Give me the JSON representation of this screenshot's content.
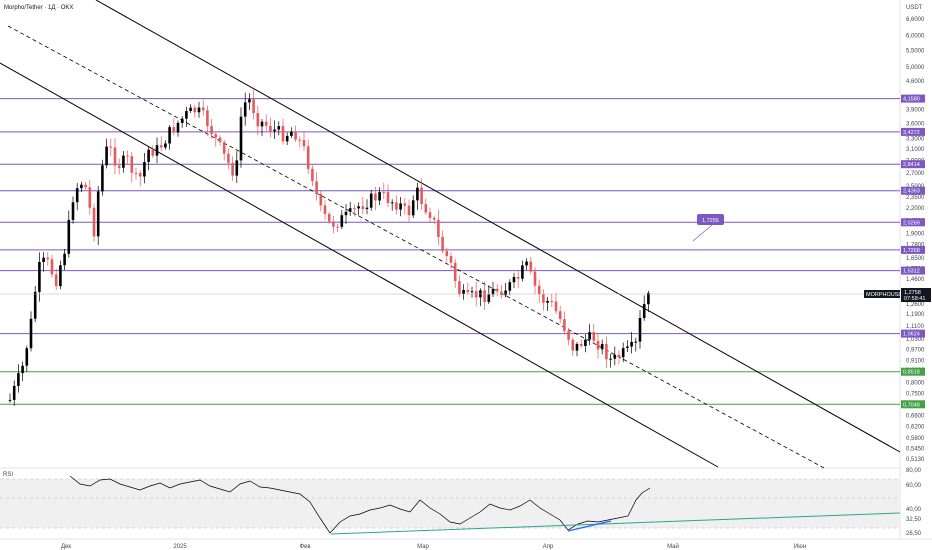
{
  "header": {
    "symbol_title": "Morpho/Tether · 1Д · OKX",
    "currency": "USDT"
  },
  "price_axis": {
    "ticks": [
      "6,6000",
      "6,0000",
      "5,5000",
      "5,0000",
      "4,6000",
      "4,2000",
      "3,9000",
      "3,6000",
      "3,3000",
      "3,1000",
      "2,9000",
      "2,7000",
      "2,5000",
      "2,3500",
      "2,2000",
      "2,0500",
      "1,9000",
      "1,7800",
      "1,6500",
      "1,5500",
      "1,4600",
      "1,3500",
      "1,2600",
      "1,1900",
      "1,1100",
      "1,0300",
      "0,9700",
      "0,9100",
      "0,8600",
      "0,8000",
      "0,7500",
      "0,7000",
      "0,6600",
      "0,6200",
      "0,5800",
      "0,5450",
      "0,5130"
    ]
  },
  "levels": [
    {
      "label": "4,1580",
      "color": "#7e57c2"
    },
    {
      "label": "3,4272",
      "color": "#7e57c2"
    },
    {
      "label": "2,8414",
      "color": "#7e57c2"
    },
    {
      "label": "2,4363",
      "color": "#7e57c2"
    },
    {
      "label": "2,0269",
      "color": "#7e57c2"
    },
    {
      "label": "1,7268",
      "color": "#7e57c2"
    },
    {
      "label": "1,5312",
      "color": "#7e57c2"
    },
    {
      "label": "1,0624",
      "color": "#7e57c2"
    },
    {
      "label": "0,8518",
      "color": "#43a047"
    },
    {
      "label": "0,7048",
      "color": "#43a047"
    }
  ],
  "current_price": {
    "symbol": "MORPHOUSDT",
    "price": "1,2758",
    "countdown": "07:58:41"
  },
  "callout": {
    "label": "1,7255"
  },
  "time_axis": [
    "Дек",
    "2025",
    "Фев",
    "Мар",
    "Апр",
    "Май",
    "Июн"
  ],
  "rsi": {
    "title": "RSI",
    "ticks": [
      "80,00",
      "60,00",
      "40,00",
      "32,50",
      "26,50"
    ]
  },
  "colors": {
    "up": "#000000",
    "down": "#e35a5a",
    "level_purple": "#7e57c2",
    "level_green": "#43a047",
    "trend_line": "#000000",
    "rsi_line": "#000000",
    "rsi_trend_teal": "#26a69a",
    "rsi_trend_blue": "#2962ff"
  }
}
